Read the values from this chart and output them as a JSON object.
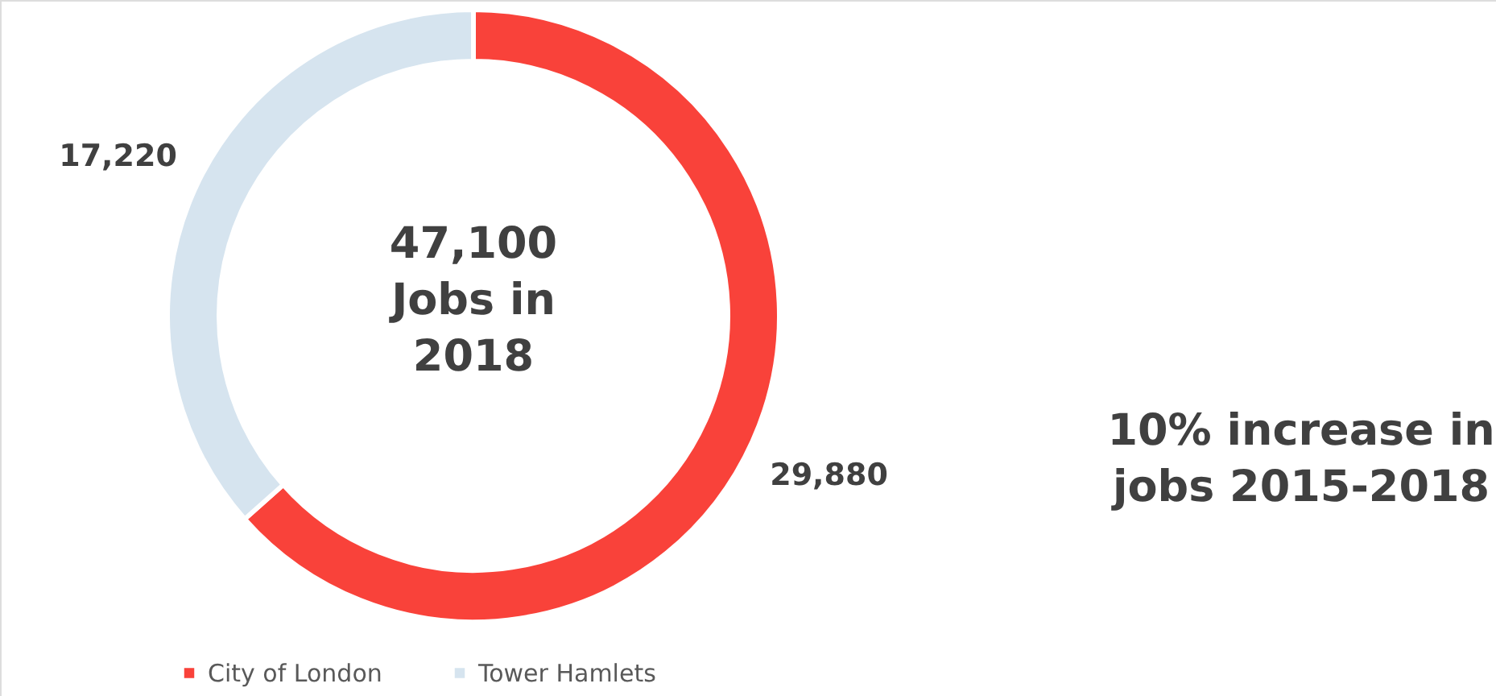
{
  "chart_data": {
    "type": "donut",
    "categories": [
      "City of London",
      "Tower Hamlets"
    ],
    "values": [
      29880,
      17220
    ],
    "colors": [
      "#f9423a",
      "#d6e4ef"
    ],
    "value_labels": [
      "29,880",
      "17,220"
    ],
    "legend": "bottom",
    "annotations": [
      "47,100\nJobs in\n2018",
      "10% increase in\njobs 2015-2018"
    ]
  }
}
